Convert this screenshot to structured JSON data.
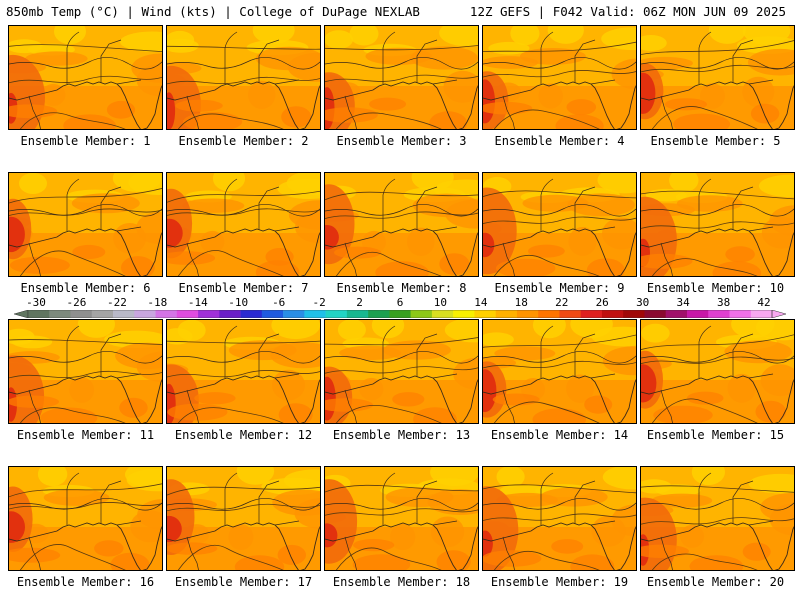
{
  "header": {
    "left": "850mb Temp (°C) | Wind (kts) | College of DuPage NEXLAB",
    "right": "12Z GEFS | F042 Valid: 06Z MON JUN 09 2025"
  },
  "panels": [
    {
      "label": "Ensemble Member: 1"
    },
    {
      "label": "Ensemble Member: 2"
    },
    {
      "label": "Ensemble Member: 3"
    },
    {
      "label": "Ensemble Member: 4"
    },
    {
      "label": "Ensemble Member: 5"
    },
    {
      "label": "Ensemble Member: 6"
    },
    {
      "label": "Ensemble Member: 7"
    },
    {
      "label": "Ensemble Member: 8"
    },
    {
      "label": "Ensemble Member: 9"
    },
    {
      "label": "Ensemble Member: 10"
    },
    {
      "label": "Ensemble Member: 11"
    },
    {
      "label": "Ensemble Member: 12"
    },
    {
      "label": "Ensemble Member: 13"
    },
    {
      "label": "Ensemble Member: 14"
    },
    {
      "label": "Ensemble Member: 15"
    },
    {
      "label": "Ensemble Member: 16"
    },
    {
      "label": "Ensemble Member: 17"
    },
    {
      "label": "Ensemble Member: 18"
    },
    {
      "label": "Ensemble Member: 19"
    },
    {
      "label": "Ensemble Member: 20"
    }
  ],
  "colorbar": {
    "ticks": [
      "-30",
      "-26",
      "-22",
      "-18",
      "-14",
      "-10",
      "-6",
      "-2",
      "2",
      "6",
      "10",
      "14",
      "18",
      "22",
      "26",
      "30",
      "34",
      "38",
      "42"
    ],
    "colors": [
      "#607560",
      "#7d8a7d",
      "#8f8f8f",
      "#a5a5a5",
      "#b9b9c8",
      "#c9a6e0",
      "#d474e6",
      "#e04ce0",
      "#a030d8",
      "#6a1fc8",
      "#2a2ad2",
      "#1f5ae0",
      "#2a8ee6",
      "#20c0e8",
      "#22d4c4",
      "#18b890",
      "#1ca050",
      "#38a020",
      "#8cc818",
      "#d8e020",
      "#f8f000",
      "#ffd000",
      "#ffb000",
      "#ff9400",
      "#ff7400",
      "#f04a14",
      "#e02020",
      "#c01010",
      "#a00808",
      "#8a0a30",
      "#a0106a",
      "#c818a8",
      "#e040d0",
      "#f070e8",
      "#f8a8f0"
    ],
    "colors_note_removed": true
  }
}
